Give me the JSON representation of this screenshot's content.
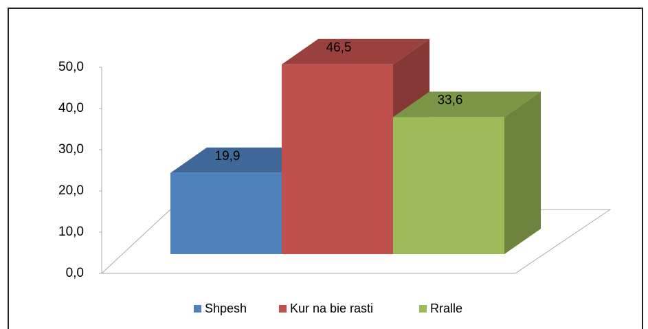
{
  "chart_data": {
    "type": "bar3d",
    "categories": [
      null
    ],
    "series": [
      {
        "name": "Shpesh",
        "color": "#4f81bd",
        "values": [
          19.9
        ],
        "value_labels": [
          "19,9"
        ]
      },
      {
        "name": "Kur na bie rasti",
        "color": "#c0504d",
        "values": [
          46.5
        ],
        "value_labels": [
          "46,5"
        ]
      },
      {
        "name": "Rralle",
        "color": "#9bbb59",
        "values": [
          33.6
        ],
        "value_labels": [
          "33,6"
        ]
      }
    ],
    "ylim": [
      0,
      50
    ],
    "yticks": [
      {
        "value": 0,
        "label": "0,0"
      },
      {
        "value": 10,
        "label": "10,0"
      },
      {
        "value": 20,
        "label": "20,0"
      },
      {
        "value": 30,
        "label": "30,0"
      },
      {
        "value": 40,
        "label": "40,0"
      },
      {
        "value": 50,
        "label": "50,0"
      }
    ],
    "legend": "bottom"
  }
}
